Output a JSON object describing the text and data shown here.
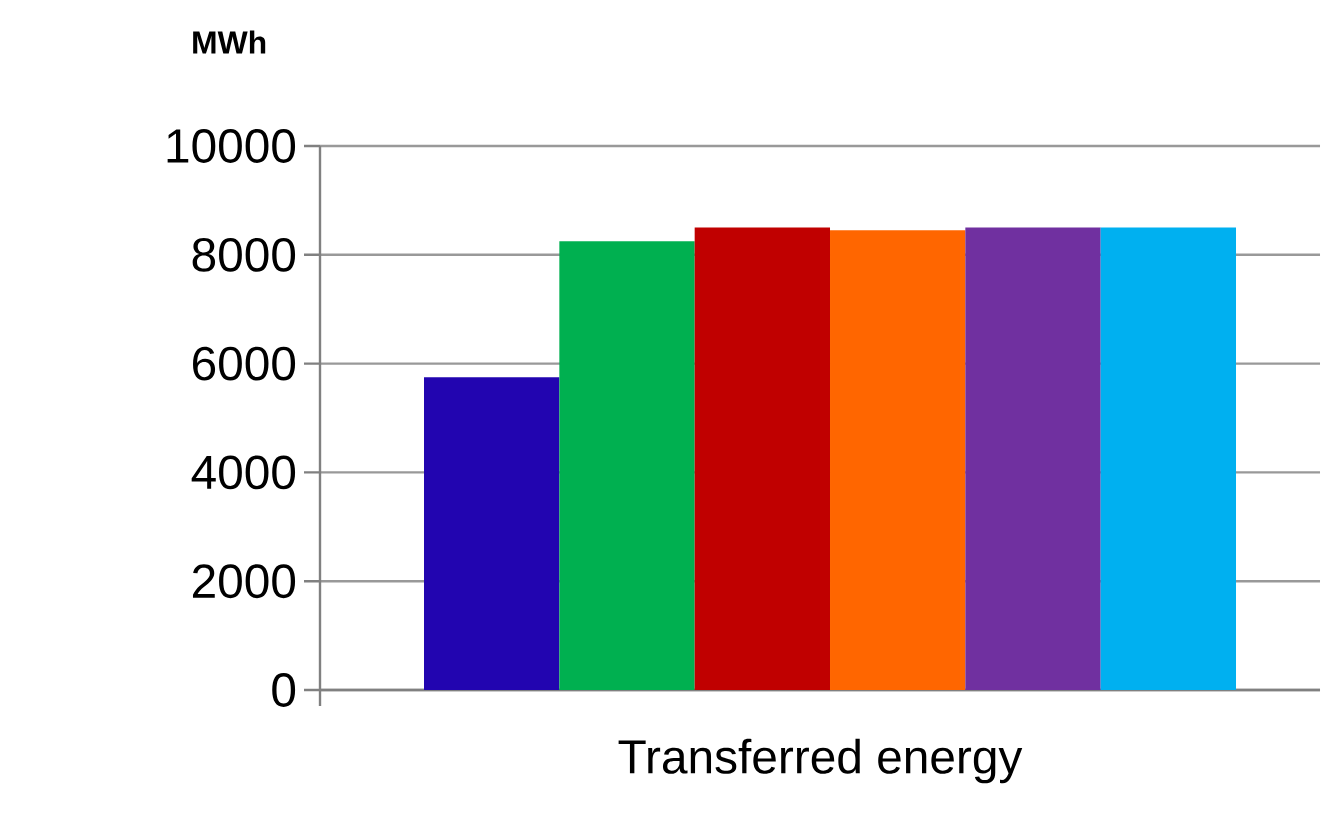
{
  "chart_data": {
    "type": "bar",
    "ylabel": "MWh",
    "xlabel": "Transferred energy",
    "categories": [
      null,
      null,
      null,
      null,
      null,
      null
    ],
    "values": [
      5750,
      8250,
      8500,
      8450,
      8500,
      8500
    ],
    "colors": [
      "#2205b0",
      "#00b050",
      "#c00000",
      "#ff6600",
      "#7030a0",
      "#00b0f0"
    ],
    "ylim": [
      0,
      10000
    ],
    "yticks": [
      0,
      2000,
      4000,
      6000,
      8000,
      10000
    ],
    "grid": "y"
  }
}
